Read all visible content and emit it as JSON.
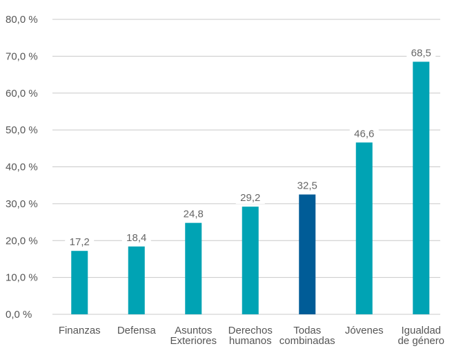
{
  "chart_data": {
    "type": "bar",
    "categories": [
      [
        "Finanzas"
      ],
      [
        "Defensa"
      ],
      [
        "Asuntos",
        "Exteriores"
      ],
      [
        "Derechos",
        "humanos"
      ],
      [
        "Todas",
        "combinadas"
      ],
      [
        "Jóvenes"
      ],
      [
        "Igualdad",
        "de género"
      ]
    ],
    "values": [
      17.2,
      18.4,
      24.8,
      29.2,
      32.5,
      46.6,
      68.5
    ],
    "value_labels": [
      "17,2",
      "18,4",
      "24,8",
      "29,2",
      "32,5",
      "46,6",
      "68,5"
    ],
    "ylim": [
      0,
      80
    ],
    "y_ticks": [
      0,
      10,
      20,
      30,
      40,
      50,
      60,
      70,
      80
    ],
    "y_tick_labels": [
      "0,0 %",
      "10,0 %",
      "20,0 %",
      "30,0 %",
      "40,0 %",
      "50,0 %",
      "60,0 %",
      "70,0 %",
      "80,0 %"
    ],
    "title": "",
    "xlabel": "",
    "ylabel": "",
    "grid": true,
    "colors": {
      "default": "#00A3B4",
      "highlight": "#005C97",
      "highlight_index": 4
    }
  }
}
